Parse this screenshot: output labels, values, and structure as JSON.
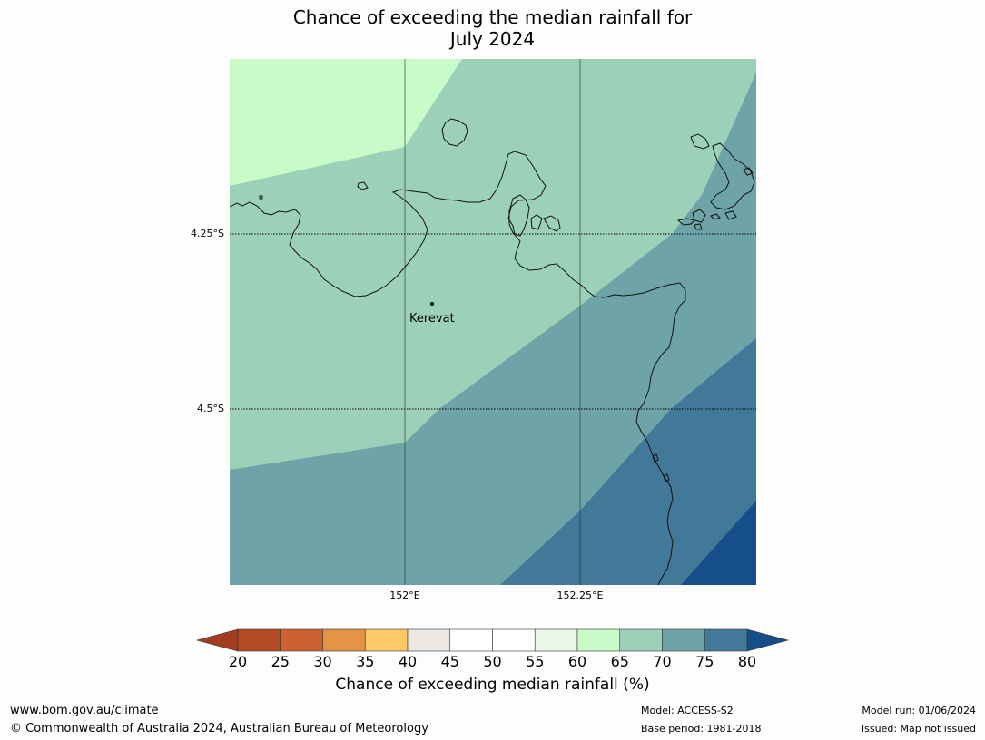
{
  "title": {
    "line1": "Chance of exceeding the median rainfall for",
    "line2": "July 2024"
  },
  "map": {
    "lat_labels": [
      "4.25°S",
      "4.5°S"
    ],
    "lon_labels": [
      "152°E",
      "152.25°E"
    ],
    "place": "Kerevat"
  },
  "colorbar": {
    "ticks": [
      "20",
      "25",
      "30",
      "35",
      "40",
      "45",
      "50",
      "55",
      "60",
      "65",
      "70",
      "75",
      "80"
    ],
    "colors": [
      "#a33d22",
      "#b54a27",
      "#cc6232",
      "#e39446",
      "#fec966",
      "#ece8e4",
      "#ffffff",
      "#ffffff",
      "#e8f7e8",
      "#c8fbc8",
      "#9dd0b8",
      "#6ea4a8",
      "#427898",
      "#154e8a"
    ],
    "label": "Chance of exceeding median rainfall (%)"
  },
  "footer": {
    "website": "www.bom.gov.au/climate",
    "copyright": "© Commonwealth of Australia 2024, Australian Bureau of Meteorology",
    "model": "Model: ACCESS-S2",
    "base_period": "Base period: 1981-2018",
    "model_run": "Model run: 01/06/2024",
    "issued": "Issued: Map not issued"
  }
}
